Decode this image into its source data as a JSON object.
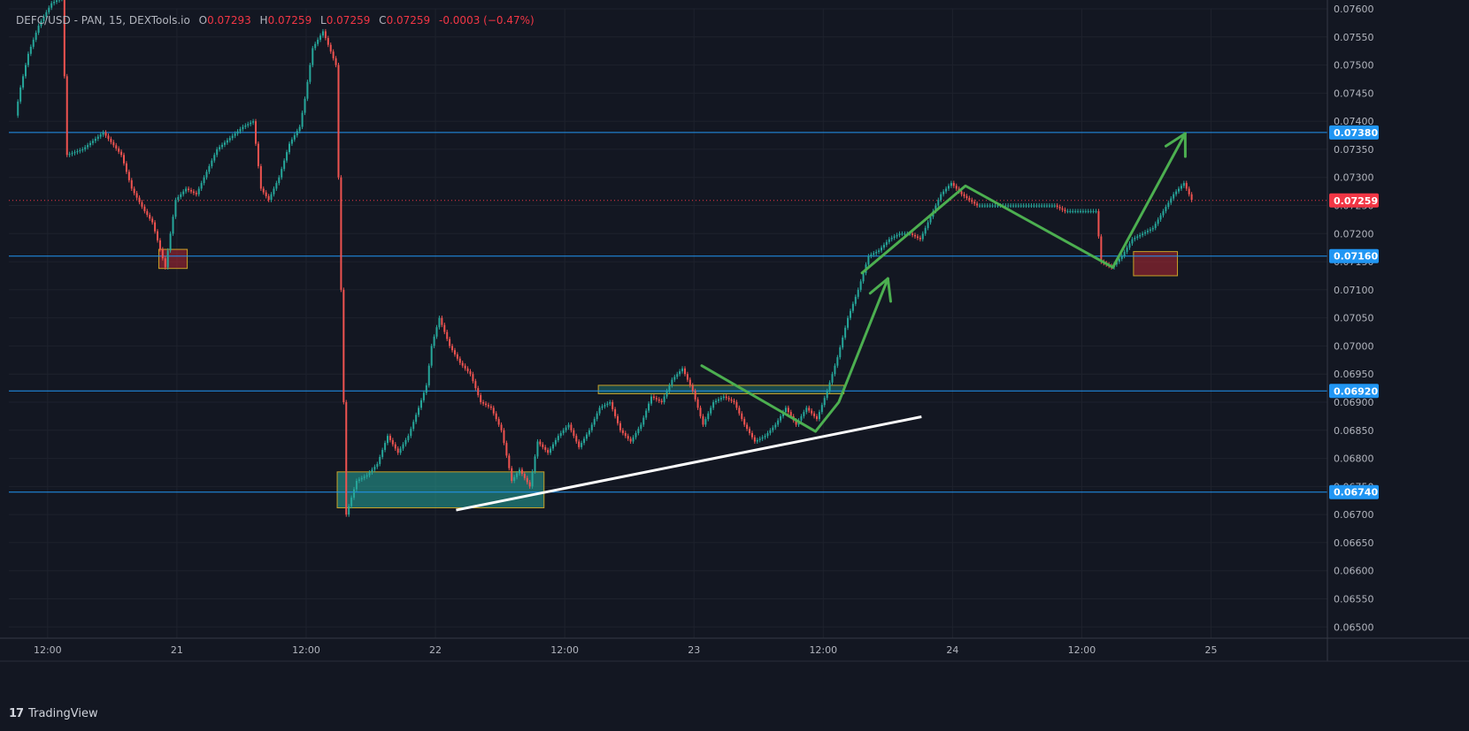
{
  "legend": {
    "symbol": "DEFC/USD - PAN, 15, DEXTools.io",
    "o_label": "O",
    "o_value": "0.07293",
    "h_label": "H",
    "h_value": "0.07259",
    "l_label": "L",
    "l_value": "0.07259",
    "c_label": "C",
    "c_value": "0.07259",
    "change": "-0.0003 (−0.47%)"
  },
  "footer": {
    "logo": "17",
    "brand": "TradingView"
  },
  "colors": {
    "background": "#131722",
    "grid": "#1e222d",
    "up": "#26a69a",
    "down": "#ef5350",
    "support_line": "#2196f3",
    "price_label_bg": "#2196f3",
    "last_price": "#f23645",
    "trendline": "#ffffff",
    "arrow": "#4caf50",
    "zone_green": "#26a69a",
    "zone_red": "#b22833",
    "zone_border": "#c9a227"
  },
  "chart_data": {
    "type": "candlestick",
    "y_axis": {
      "range": [
        0.0648,
        0.076
      ],
      "ticks": [
        "0.07600",
        "0.07550",
        "0.07500",
        "0.07450",
        "0.07400",
        "0.07350",
        "0.07300",
        "0.07250",
        "0.07200",
        "0.07150",
        "0.07100",
        "0.07050",
        "0.07000",
        "0.06950",
        "0.06900",
        "0.06850",
        "0.06800",
        "0.06750",
        "0.06700",
        "0.06650",
        "0.06600",
        "0.06550",
        "0.06500"
      ]
    },
    "x_axis": {
      "range_days": [
        20.35,
        25.45
      ],
      "ticks": [
        {
          "label": "12:00",
          "t": 20.5
        },
        {
          "label": "21",
          "t": 21.0
        },
        {
          "label": "12:00",
          "t": 21.5
        },
        {
          "label": "22",
          "t": 22.0
        },
        {
          "label": "12:00",
          "t": 22.5
        },
        {
          "label": "23",
          "t": 23.0
        },
        {
          "label": "12:00",
          "t": 23.5
        },
        {
          "label": "24",
          "t": 24.0
        },
        {
          "label": "12:00",
          "t": 24.5
        },
        {
          "label": "25",
          "t": 25.0
        }
      ]
    },
    "horizontal_levels": [
      {
        "price": 0.0738,
        "label": "0.07380"
      },
      {
        "price": 0.0716,
        "label": "0.07160"
      },
      {
        "price": 0.0692,
        "label": "0.06920"
      },
      {
        "price": 0.0674,
        "label": "0.06740"
      }
    ],
    "last_price": {
      "price": 0.07259,
      "label": "0.07259"
    },
    "price_path": [
      [
        20.38,
        0.0741
      ],
      [
        20.4,
        0.0746
      ],
      [
        20.43,
        0.0752
      ],
      [
        20.47,
        0.0757
      ],
      [
        20.52,
        0.0761
      ],
      [
        20.56,
        0.0762
      ],
      [
        20.58,
        0.0734
      ],
      [
        20.64,
        0.0735
      ],
      [
        20.72,
        0.0738
      ],
      [
        20.79,
        0.0734
      ],
      [
        20.83,
        0.0728
      ],
      [
        20.88,
        0.0724
      ],
      [
        20.91,
        0.0722
      ],
      [
        20.96,
        0.0714
      ],
      [
        20.98,
        0.072
      ],
      [
        21.0,
        0.0726
      ],
      [
        21.04,
        0.0728
      ],
      [
        21.08,
        0.0727
      ],
      [
        21.12,
        0.0731
      ],
      [
        21.16,
        0.0735
      ],
      [
        21.21,
        0.0737
      ],
      [
        21.26,
        0.0739
      ],
      [
        21.3,
        0.074
      ],
      [
        21.33,
        0.0728
      ],
      [
        21.36,
        0.0726
      ],
      [
        21.4,
        0.073
      ],
      [
        21.44,
        0.0736
      ],
      [
        21.48,
        0.0739
      ],
      [
        21.5,
        0.0744
      ],
      [
        21.53,
        0.0753
      ],
      [
        21.57,
        0.0756
      ],
      [
        21.62,
        0.075
      ],
      [
        21.66,
        0.067
      ],
      [
        21.7,
        0.0676
      ],
      [
        21.74,
        0.0677
      ],
      [
        21.78,
        0.0679
      ],
      [
        21.82,
        0.0684
      ],
      [
        21.86,
        0.0681
      ],
      [
        21.9,
        0.0684
      ],
      [
        21.94,
        0.0689
      ],
      [
        21.97,
        0.0693
      ],
      [
        21.99,
        0.07
      ],
      [
        22.02,
        0.0705
      ],
      [
        22.06,
        0.07
      ],
      [
        22.1,
        0.0697
      ],
      [
        22.14,
        0.0695
      ],
      [
        22.18,
        0.069
      ],
      [
        22.22,
        0.0689
      ],
      [
        22.26,
        0.0685
      ],
      [
        22.3,
        0.0676
      ],
      [
        22.33,
        0.0678
      ],
      [
        22.37,
        0.0675
      ],
      [
        22.4,
        0.0683
      ],
      [
        22.44,
        0.0681
      ],
      [
        22.48,
        0.0684
      ],
      [
        22.52,
        0.0686
      ],
      [
        22.56,
        0.0682
      ],
      [
        22.6,
        0.0685
      ],
      [
        22.64,
        0.0689
      ],
      [
        22.68,
        0.069
      ],
      [
        22.72,
        0.0685
      ],
      [
        22.76,
        0.0683
      ],
      [
        22.8,
        0.0686
      ],
      [
        22.84,
        0.0691
      ],
      [
        22.88,
        0.069
      ],
      [
        22.92,
        0.0694
      ],
      [
        22.96,
        0.0696
      ],
      [
        23.0,
        0.0692
      ],
      [
        23.04,
        0.0686
      ],
      [
        23.08,
        0.069
      ],
      [
        23.12,
        0.0691
      ],
      [
        23.16,
        0.069
      ],
      [
        23.2,
        0.0686
      ],
      [
        23.24,
        0.0683
      ],
      [
        23.28,
        0.0684
      ],
      [
        23.32,
        0.0686
      ],
      [
        23.36,
        0.0689
      ],
      [
        23.4,
        0.0686
      ],
      [
        23.44,
        0.0689
      ],
      [
        23.48,
        0.0687
      ],
      [
        23.52,
        0.0692
      ],
      [
        23.56,
        0.0698
      ],
      [
        23.6,
        0.0705
      ],
      [
        23.64,
        0.071
      ],
      [
        23.68,
        0.0716
      ],
      [
        23.72,
        0.0717
      ],
      [
        23.76,
        0.0719
      ],
      [
        23.8,
        0.072
      ],
      [
        23.84,
        0.072
      ],
      [
        23.88,
        0.0719
      ],
      [
        23.92,
        0.0723
      ],
      [
        23.96,
        0.0727
      ],
      [
        24.0,
        0.0729
      ],
      [
        24.04,
        0.0727
      ],
      [
        24.1,
        0.0725
      ],
      [
        24.2,
        0.0725
      ],
      [
        24.3,
        0.0725
      ],
      [
        24.4,
        0.0725
      ],
      [
        24.44,
        0.0724
      ],
      [
        24.48,
        0.0724
      ],
      [
        24.52,
        0.0724
      ],
      [
        24.56,
        0.0724
      ],
      [
        24.58,
        0.0715
      ],
      [
        24.62,
        0.0714
      ],
      [
        24.66,
        0.0716
      ],
      [
        24.7,
        0.0719
      ],
      [
        24.74,
        0.072
      ],
      [
        24.78,
        0.0721
      ],
      [
        24.82,
        0.0724
      ],
      [
        24.86,
        0.0727
      ],
      [
        24.9,
        0.0729
      ],
      [
        24.93,
        0.0726
      ]
    ],
    "zones": [
      {
        "kind": "demand",
        "t0": 21.62,
        "t1": 22.42,
        "p_low": 0.06712,
        "p_high": 0.06776
      },
      {
        "kind": "resistance",
        "t0": 22.63,
        "t1": 23.58,
        "p_low": 0.06915,
        "p_high": 0.0693
      },
      {
        "kind": "supply",
        "t0": 20.93,
        "t1": 21.04,
        "p_low": 0.07138,
        "p_high": 0.07172
      },
      {
        "kind": "supply",
        "t0": 24.7,
        "t1": 24.87,
        "p_low": 0.07125,
        "p_high": 0.07168
      }
    ],
    "trendline": {
      "points": [
        [
          22.08,
          0.06708
        ],
        [
          23.88,
          0.06874
        ]
      ]
    },
    "arrows": [
      {
        "path": [
          [
            23.03,
            0.06965
          ],
          [
            23.47,
            0.06848
          ],
          [
            23.56,
            0.069
          ],
          [
            23.75,
            0.0712
          ]
        ]
      },
      {
        "path": [
          [
            23.65,
            0.0713
          ],
          [
            24.05,
            0.07285
          ],
          [
            24.62,
            0.0714
          ],
          [
            24.9,
            0.07378
          ]
        ]
      }
    ]
  }
}
